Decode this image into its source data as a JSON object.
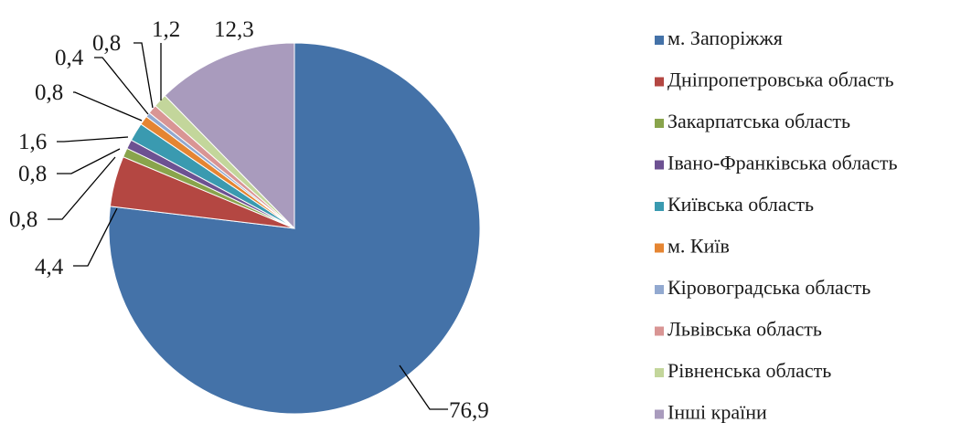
{
  "chart_data": {
    "type": "pie",
    "slices": [
      {
        "name": "м. Запоріжжя",
        "value": 76.9,
        "label": "76,9",
        "color": "#4472A8"
      },
      {
        "name": "Дніпропетровська область",
        "value": 4.4,
        "label": "4,4",
        "color": "#B44742"
      },
      {
        "name": "Закарпатська область",
        "value": 0.8,
        "label": "0,8",
        "color": "#89A44C"
      },
      {
        "name": "Івано-Франківська область",
        "value": 0.8,
        "label": "0,8",
        "color": "#6D5192"
      },
      {
        "name": "Київська область",
        "value": 1.6,
        "label": "1,6",
        "color": "#3A9AB0"
      },
      {
        "name": "м. Київ",
        "value": 0.8,
        "label": "0,8",
        "color": "#E58532"
      },
      {
        "name": "Кіровоградська область",
        "value": 0.4,
        "label": "0,4",
        "color": "#92A9D0"
      },
      {
        "name": "Львівська область",
        "value": 0.8,
        "label": "0,8",
        "color": "#D99594"
      },
      {
        "name": "Рівненська область",
        "value": 1.2,
        "label": "1,2",
        "color": "#C3D69B"
      },
      {
        "name": "Інші країни",
        "value": 12.3,
        "label": "12,3",
        "color": "#A99BBD"
      }
    ],
    "legend_position": "right",
    "start_angle": "12 o'clock",
    "direction": "clockwise"
  }
}
